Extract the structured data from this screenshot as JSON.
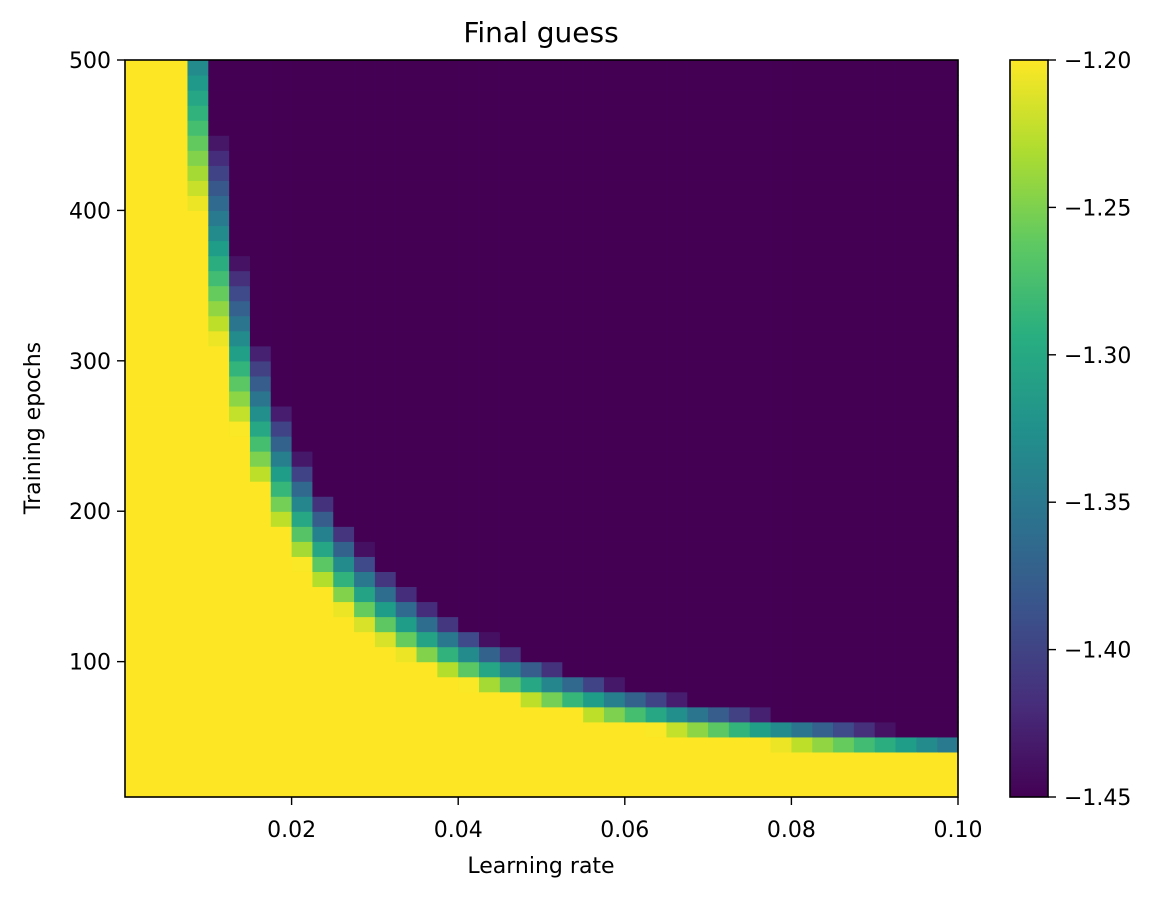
{
  "chart_data": {
    "type": "heatmap",
    "title": "Final guess",
    "xlabel": "Learning rate",
    "ylabel": "Training epochs",
    "xlim": [
      0.0,
      0.1
    ],
    "ylim": [
      10,
      500
    ],
    "x_ticks": [
      0.02,
      0.04,
      0.06,
      0.08,
      0.1
    ],
    "x_tick_labels": [
      "0.02",
      "0.04",
      "0.06",
      "0.08",
      "0.10"
    ],
    "y_ticks": [
      100,
      200,
      300,
      400,
      500
    ],
    "y_tick_labels": [
      "100",
      "200",
      "300",
      "400",
      "500"
    ],
    "colorbar": {
      "colormap": "viridis",
      "vmin": -1.45,
      "vmax": -1.2,
      "ticks": [
        -1.2,
        -1.25,
        -1.3,
        -1.35,
        -1.4,
        -1.45
      ],
      "tick_labels": [
        "−1.20",
        "−1.25",
        "−1.30",
        "−1.35",
        "−1.40",
        "−1.45"
      ]
    },
    "grid": {
      "x_min": 0.0,
      "x_max": 0.1,
      "x_bins": 40,
      "y_min": 10,
      "y_max": 500,
      "y_bins": 49
    },
    "description_of_values": {
      "max_value_region": -1.2,
      "min_value_region": -1.45,
      "transition_bands": [
        {
          "epochs_range": [
            340,
            500
          ],
          "learning_rate": 0.003
        },
        {
          "epochs_range": [
            230,
            330
          ],
          "learning_rate": 0.006
        },
        {
          "epochs_range": [
            180,
            240
          ],
          "learning_rate": 0.009
        },
        {
          "epochs_range": [
            140,
            200
          ],
          "learning_rate": 0.012
        },
        {
          "epochs_range": [
            110,
            160
          ],
          "learning_rate": 0.015
        },
        {
          "epochs_range": [
            90,
            120
          ],
          "learning_rate": 0.02
        },
        {
          "epochs_range": [
            70,
            90
          ],
          "learning_rate": 0.03
        },
        {
          "epochs_range": [
            55,
            65
          ],
          "learning_rate": 0.045
        },
        {
          "epochs_range": [
            45,
            55
          ],
          "learning_rate": 0.06
        },
        {
          "epochs_range": [
            35,
            45
          ],
          "learning_rate": 0.09
        }
      ]
    }
  }
}
